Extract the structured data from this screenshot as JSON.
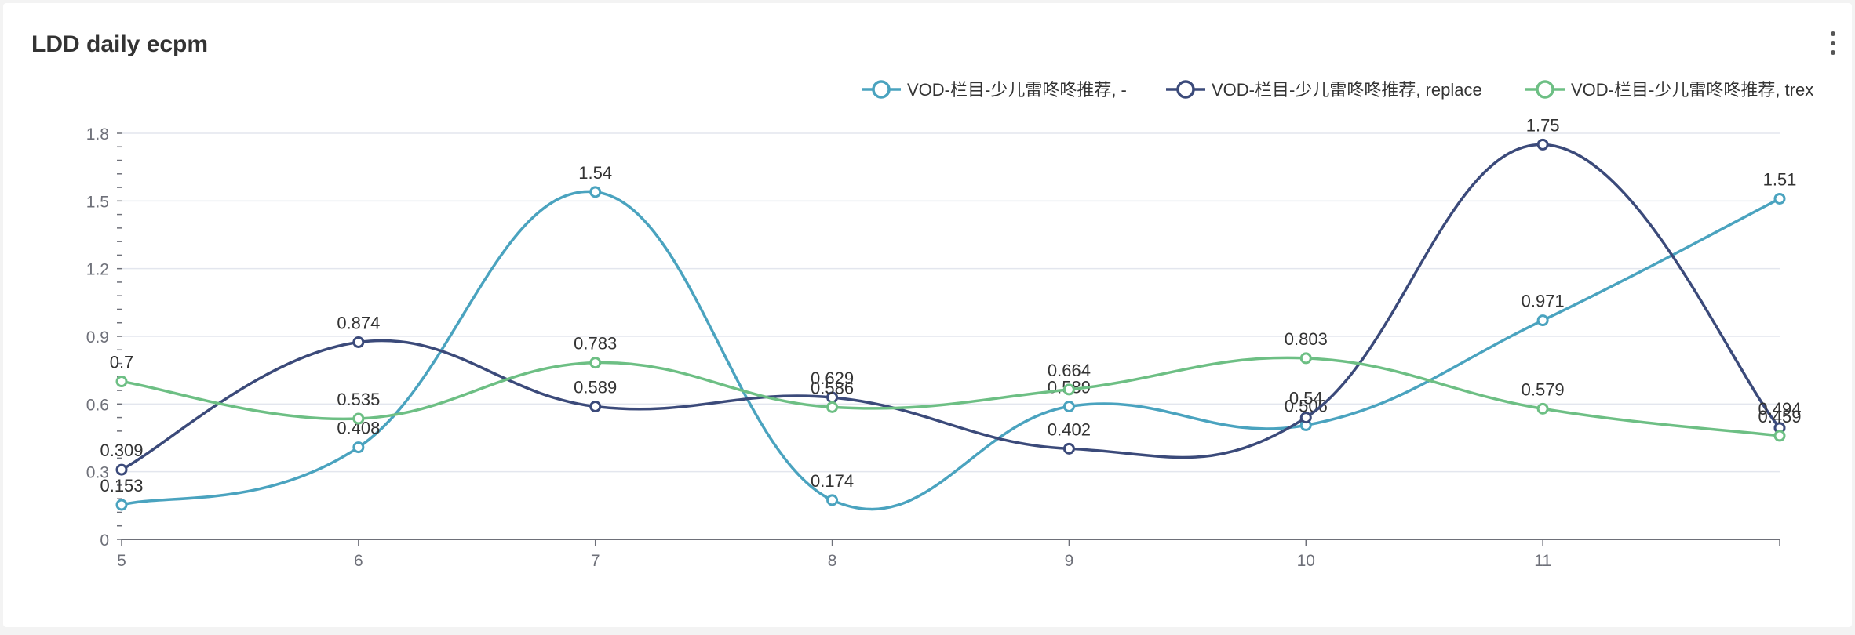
{
  "title": "LDD daily ecpm",
  "menu_icon": "kebab-menu-icon",
  "chart_data": {
    "type": "line",
    "smooth": true,
    "title": "LDD daily ecpm",
    "xlabel": "",
    "ylabel": "",
    "x": [
      5,
      6,
      7,
      8,
      9,
      10,
      11,
      12
    ],
    "x_tick_labels": [
      "5",
      "6",
      "7",
      "8",
      "9",
      "10",
      "11"
    ],
    "ylim": [
      0,
      1.8
    ],
    "y_ticks": [
      0,
      0.3,
      0.6,
      0.9,
      1.2,
      1.5,
      1.8
    ],
    "y_tick_labels": [
      "0",
      "0.3",
      "0.6",
      "0.9",
      "1.2",
      "1.5",
      "1.8"
    ],
    "grid": true,
    "legend_position": "top-right",
    "series": [
      {
        "name": "VOD-栏目-少儿雷咚咚推荐, -",
        "color": "#4aa3bf",
        "values": [
          0.153,
          0.408,
          1.54,
          0.174,
          0.589,
          0.506,
          0.971,
          1.51
        ],
        "labels": [
          "0.153",
          "0.408",
          "1.54",
          "0.174",
          "0.589",
          "0.506",
          "0.971",
          "1.51"
        ]
      },
      {
        "name": "VOD-栏目-少儿雷咚咚推荐, replace",
        "color": "#3b4a7a",
        "values": [
          0.309,
          0.874,
          0.589,
          0.629,
          0.402,
          0.54,
          1.75,
          0.494
        ],
        "labels": [
          "0.309",
          "0.874",
          "0.589",
          "0.629",
          "0.402",
          "0.54",
          "1.75",
          "0.494"
        ]
      },
      {
        "name": "VOD-栏目-少儿雷咚咚推荐, trex",
        "color": "#6dbf84",
        "values": [
          0.7,
          0.535,
          0.783,
          0.586,
          0.664,
          0.803,
          0.579,
          0.459
        ],
        "labels": [
          "0.7",
          "0.535",
          "0.783",
          "0.586",
          "0.664",
          "0.803",
          "0.579",
          "0.459"
        ]
      }
    ]
  }
}
